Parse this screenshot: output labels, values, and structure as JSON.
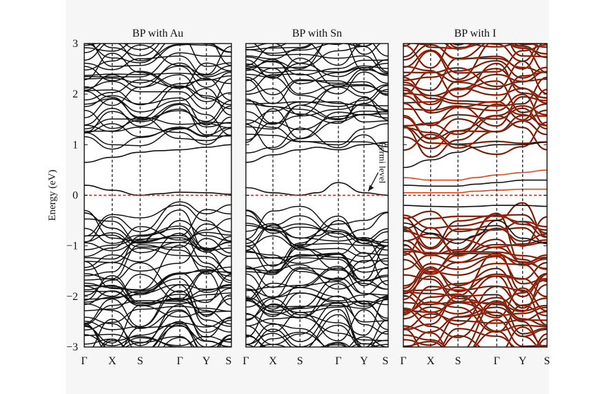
{
  "chart_data": {
    "type": "line",
    "subtype": "band-structure",
    "ylabel": "Energy (eV)",
    "ylim": [
      -3,
      3
    ],
    "yticks": [
      3,
      2,
      1,
      0,
      -1,
      -2,
      -3
    ],
    "ytick_labels": [
      "3",
      "2",
      "1",
      "0",
      "−1",
      "−2",
      "−3"
    ],
    "kpath": [
      "Γ",
      "X",
      "S",
      "Γ",
      "Y",
      "S"
    ],
    "kpath_positions": [
      0,
      0.19,
      0.38,
      0.65,
      0.83,
      1.0
    ],
    "fermi_level": 0,
    "grid": false,
    "colors": {
      "band": "#111111",
      "band_alt": "#e8451c",
      "fermi": "#d42020",
      "vline": "#222222"
    },
    "panels": [
      {
        "title": "BP with Au",
        "gap_bands": [
          {
            "name": "conduction-edge",
            "x": [
              0,
              0.19,
              0.38,
              0.5,
              0.65,
              0.83,
              1.0
            ],
            "y": [
              0.65,
              0.75,
              0.85,
              0.88,
              0.9,
              0.95,
              1.0
            ]
          },
          {
            "name": "defect",
            "x": [
              0,
              0.19,
              0.38,
              0.5,
              0.65,
              0.83,
              1.0
            ],
            "y": [
              0.2,
              0.1,
              0.0,
              0.03,
              0.06,
              0.05,
              0.02
            ]
          },
          {
            "name": "valence-edge",
            "x": [
              0,
              0.19,
              0.38,
              0.5,
              0.65,
              0.83,
              1.0
            ],
            "y": [
              -0.35,
              -0.65,
              -0.95,
              -0.75,
              -0.5,
              -0.8,
              -0.9
            ]
          }
        ],
        "annotation": ""
      },
      {
        "title": "BP with Sn",
        "gap_bands": [
          {
            "name": "conduction-edge",
            "x": [
              0,
              0.19,
              0.38,
              0.5,
              0.65,
              0.83,
              1.0
            ],
            "y": [
              0.65,
              0.8,
              0.9,
              0.95,
              0.9,
              1.0,
              1.05
            ]
          },
          {
            "name": "defect",
            "x": [
              0,
              0.19,
              0.38,
              0.5,
              0.65,
              0.83,
              1.0
            ],
            "y": [
              0.15,
              0.05,
              0.0,
              0.05,
              0.25,
              0.05,
              0.0
            ]
          },
          {
            "name": "valence-edge",
            "x": [
              0,
              0.19,
              0.38,
              0.5,
              0.65,
              0.83,
              1.0
            ],
            "y": [
              -0.4,
              -0.7,
              -1.0,
              -0.8,
              -0.5,
              -0.9,
              -1.0
            ]
          }
        ],
        "annotation": "Fermi level"
      },
      {
        "title": "BP with I",
        "gap_bands": [
          {
            "name": "conduction-edge",
            "x": [
              0,
              0.19,
              0.38,
              0.5,
              0.65,
              0.83,
              1.0
            ],
            "y": [
              0.55,
              0.7,
              0.85,
              0.95,
              1.0,
              1.0,
              1.05
            ]
          },
          {
            "name": "defect-1",
            "x": [
              0,
              0.19,
              0.38,
              0.5,
              0.65,
              0.83,
              1.0
            ],
            "y": [
              0.35,
              0.3,
              0.3,
              0.35,
              0.4,
              0.45,
              0.5
            ]
          },
          {
            "name": "defect-2",
            "x": [
              0,
              0.19,
              0.38,
              0.5,
              0.65,
              0.83,
              1.0
            ],
            "y": [
              0.2,
              0.18,
              0.18,
              0.22,
              0.25,
              0.3,
              0.3
            ]
          },
          {
            "name": "defect-3",
            "x": [
              0,
              0.19,
              0.38,
              0.5,
              0.65,
              0.83,
              1.0
            ],
            "y": [
              0.05,
              0.05,
              0.05,
              0.08,
              0.1,
              0.12,
              0.12
            ]
          },
          {
            "name": "defect-4",
            "x": [
              0,
              0.19,
              0.38,
              0.5,
              0.65,
              0.83,
              1.0
            ],
            "y": [
              -0.2,
              -0.22,
              -0.23,
              -0.22,
              -0.2,
              -0.2,
              -0.22
            ]
          },
          {
            "name": "valence-edge",
            "x": [
              0,
              0.19,
              0.38,
              0.5,
              0.65,
              0.83,
              1.0
            ],
            "y": [
              -0.55,
              -0.75,
              -0.95,
              -0.8,
              -0.5,
              -0.85,
              -0.95
            ]
          }
        ],
        "annotation": ""
      }
    ]
  }
}
